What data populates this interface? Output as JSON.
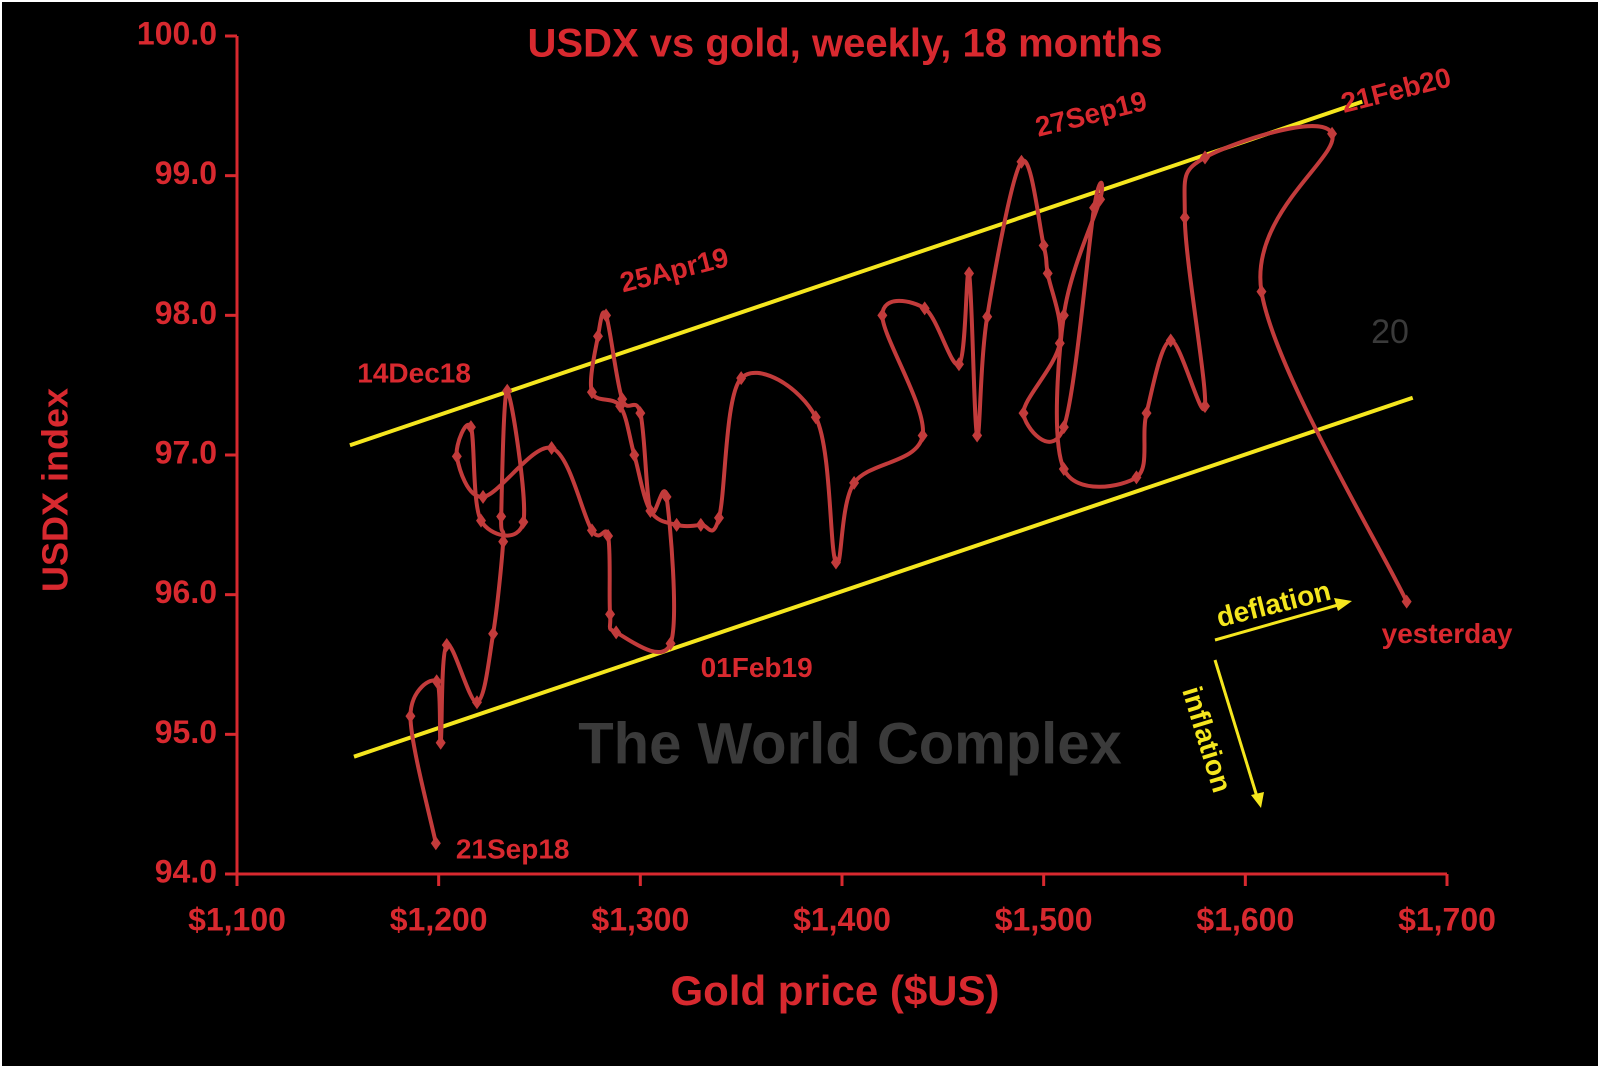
{
  "chart_data": {
    "type": "line",
    "title": "USDX vs gold, weekly, 18 months",
    "x_label": "Gold price ($US)",
    "y_label": "USDX index",
    "watermark": "The World Complex",
    "corner_note": "20",
    "arrow_labels": [
      "deflation",
      "inflation"
    ],
    "xlim": [
      1100,
      1700
    ],
    "ylim": [
      94,
      100
    ],
    "xticks": [
      {
        "value": 1100,
        "label": "$1,100"
      },
      {
        "value": 1200,
        "label": "$1,200"
      },
      {
        "value": 1300,
        "label": "$1,300"
      },
      {
        "value": 1400,
        "label": "$1,400"
      },
      {
        "value": 1500,
        "label": "$1,500"
      },
      {
        "value": 1600,
        "label": "$1,600"
      },
      {
        "value": 1700,
        "label": "$1,700"
      }
    ],
    "yticks": [
      {
        "value": 94,
        "label": "94.0"
      },
      {
        "value": 95,
        "label": "95.0"
      },
      {
        "value": 96,
        "label": "96.0"
      },
      {
        "value": 97,
        "label": "97.0"
      },
      {
        "value": 98,
        "label": "98.0"
      },
      {
        "value": 99,
        "label": "99.0"
      },
      {
        "value": 100,
        "label": "100.0"
      }
    ],
    "channel_lines": [
      {
        "color": "#f5e61e",
        "x": [
          1156,
          1658
        ],
        "y": [
          97.07,
          99.53
        ]
      },
      {
        "color": "#f5e61e",
        "x": [
          1158,
          1683
        ],
        "y": [
          94.84,
          97.41
        ]
      }
    ],
    "series": [
      {
        "color": "#c23b3b",
        "x": [
          1198.6,
          1186,
          1199,
          1201,
          1204,
          1219,
          1227,
          1232,
          1231,
          1234,
          1242,
          1221,
          1216,
          1209,
          1222,
          1256,
          1276,
          1284,
          1285,
          1288,
          1315,
          1313,
          1305,
          1300,
          1291,
          1283,
          1279,
          1276,
          1290,
          1297,
          1305,
          1318,
          1330,
          1339,
          1350,
          1387,
          1397,
          1406,
          1440,
          1420,
          1441,
          1458,
          1463,
          1467,
          1472,
          1489,
          1500,
          1502,
          1508,
          1490,
          1510,
          1525,
          1528,
          1510,
          1510,
          1546,
          1551,
          1563,
          1580,
          1570,
          1580,
          1643,
          1608,
          1680
        ],
        "values": [
          94.22,
          95.13,
          95.38,
          94.94,
          95.64,
          95.23,
          95.72,
          96.38,
          96.56,
          97.46,
          96.52,
          96.53,
          97.2,
          96.99,
          96.7,
          97.05,
          96.46,
          96.42,
          95.86,
          95.73,
          95.65,
          96.7,
          96.6,
          97.3,
          97.4,
          98.0,
          97.85,
          97.45,
          97.35,
          97.0,
          96.6,
          96.5,
          96.5,
          96.55,
          97.55,
          97.27,
          96.23,
          96.8,
          97.14,
          98.0,
          98.05,
          97.65,
          98.3,
          97.14,
          97.99,
          99.1,
          98.5,
          98.3,
          97.8,
          97.3,
          97.2,
          98.77,
          98.83,
          98.0,
          96.9,
          96.84,
          97.3,
          97.82,
          97.35,
          98.7,
          99.13,
          99.3,
          98.17,
          95.95
        ],
        "point_labels": [
          "21Sep18",
          null,
          null,
          null,
          null,
          null,
          null,
          null,
          null,
          null,
          null,
          null,
          "14Dec18",
          null,
          null,
          null,
          null,
          null,
          null,
          null,
          "01Feb19",
          null,
          null,
          null,
          null,
          "25Apr19",
          null,
          null,
          null,
          null,
          null,
          null,
          null,
          null,
          null,
          null,
          null,
          null,
          null,
          null,
          null,
          null,
          null,
          null,
          null,
          "27Sep19",
          null,
          null,
          null,
          null,
          null,
          null,
          null,
          null,
          null,
          null,
          null,
          null,
          null,
          null,
          null,
          "21Feb20",
          null,
          "yesterday"
        ]
      }
    ]
  }
}
